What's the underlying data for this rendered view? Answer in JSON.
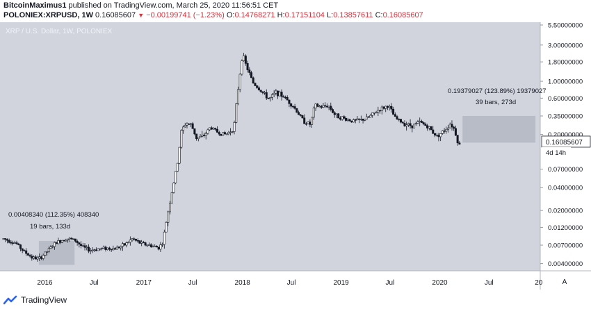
{
  "header": {
    "author": "BitcoinMaximus1",
    "published_text": "published on TradingView.com, March 25, 2020 11:56:51 CET",
    "symbol": "POLONIEX:XRPUSD, 1W",
    "last_price": "0.16085607",
    "change": "−0.00199741 (−1.23%)",
    "o_label": "O:",
    "o_value": "0.14768271",
    "h_label": "H:",
    "h_value": "0.17151104",
    "l_label": "L:",
    "l_value": "0.13857611",
    "c_label": "C:",
    "c_value": "0.16085607"
  },
  "footer": {
    "brand": "TradingView",
    "logo_icon": "tradingview-logo-icon"
  },
  "chart_data": {
    "type": "candlestick",
    "title": "XRP / U.S. Dollar, 1W, POLONIEX",
    "y_scale": "log",
    "ylim": [
      0.0035,
      5.5
    ],
    "y_ticks": [
      {
        "value": 5.5,
        "label": "5.50000000"
      },
      {
        "value": 3.0,
        "label": "3.00000000"
      },
      {
        "value": 1.8,
        "label": "1.80000000"
      },
      {
        "value": 1.0,
        "label": "1.00000000"
      },
      {
        "value": 0.6,
        "label": "0.60000000"
      },
      {
        "value": 0.35,
        "label": "0.35000000"
      },
      {
        "value": 0.2,
        "label": "0.20000000"
      },
      {
        "value": 0.07,
        "label": "0.07000000"
      },
      {
        "value": 0.04,
        "label": "0.04000000"
      },
      {
        "value": 0.02,
        "label": "0.02000000"
      },
      {
        "value": 0.012,
        "label": "0.01200000"
      },
      {
        "value": 0.007,
        "label": "0.00700000"
      },
      {
        "value": 0.004,
        "label": "0.00400000"
      }
    ],
    "x_ticks": [
      "2016",
      "Jul",
      "2017",
      "Jul",
      "2018",
      "Jul",
      "2019",
      "Jul",
      "2020",
      "Jul",
      "20"
    ],
    "last_price_label": "0.16085607",
    "countdown_label": "4d 14h",
    "axis_mode_button": "A",
    "background_color": "#d1d4dc",
    "grid": false,
    "price_path": [
      [
        "2015-08-01",
        0.0085
      ],
      [
        "2015-09-15",
        0.0075
      ],
      [
        "2015-10-15",
        0.0058
      ],
      [
        "2015-11-15",
        0.0048
      ],
      [
        "2015-12-10",
        0.0046
      ],
      [
        "2016-01-05",
        0.0056
      ],
      [
        "2016-02-10",
        0.0075
      ],
      [
        "2016-03-20",
        0.0086
      ],
      [
        "2016-04-20",
        0.0082
      ],
      [
        "2016-05-20",
        0.0066
      ],
      [
        "2016-06-15",
        0.006
      ],
      [
        "2016-07-10",
        0.0062
      ],
      [
        "2016-08-10",
        0.0064
      ],
      [
        "2016-09-15",
        0.0063
      ],
      [
        "2016-10-20",
        0.007
      ],
      [
        "2016-11-20",
        0.0085
      ],
      [
        "2016-12-20",
        0.0074
      ],
      [
        "2017-01-20",
        0.007
      ],
      [
        "2017-02-25",
        0.0065
      ],
      [
        "2017-03-12",
        0.0075
      ],
      [
        "2017-03-30",
        0.018
      ],
      [
        "2017-04-15",
        0.035
      ],
      [
        "2017-05-05",
        0.08
      ],
      [
        "2017-05-20",
        0.22
      ],
      [
        "2017-06-05",
        0.28
      ],
      [
        "2017-06-25",
        0.27
      ],
      [
        "2017-07-15",
        0.18
      ],
      [
        "2017-08-10",
        0.19
      ],
      [
        "2017-09-05",
        0.25
      ],
      [
        "2017-10-05",
        0.21
      ],
      [
        "2017-11-01",
        0.2
      ],
      [
        "2017-11-30",
        0.24
      ],
      [
        "2017-12-15",
        0.75
      ],
      [
        "2018-01-01",
        2.3
      ],
      [
        "2018-01-15",
        1.6
      ],
      [
        "2018-02-10",
        0.95
      ],
      [
        "2018-03-10",
        0.75
      ],
      [
        "2018-04-10",
        0.58
      ],
      [
        "2018-05-05",
        0.72
      ],
      [
        "2018-06-05",
        0.62
      ],
      [
        "2018-07-10",
        0.46
      ],
      [
        "2018-08-15",
        0.3
      ],
      [
        "2018-09-10",
        0.27
      ],
      [
        "2018-09-25",
        0.48
      ],
      [
        "2018-10-20",
        0.46
      ],
      [
        "2018-11-15",
        0.48
      ],
      [
        "2018-12-10",
        0.36
      ],
      [
        "2019-01-15",
        0.32
      ],
      [
        "2019-02-15",
        0.3
      ],
      [
        "2019-03-15",
        0.31
      ],
      [
        "2019-04-10",
        0.33
      ],
      [
        "2019-05-20",
        0.42
      ],
      [
        "2019-06-25",
        0.48
      ],
      [
        "2019-07-20",
        0.33
      ],
      [
        "2019-08-20",
        0.28
      ],
      [
        "2019-09-20",
        0.26
      ],
      [
        "2019-10-20",
        0.29
      ],
      [
        "2019-11-20",
        0.25
      ],
      [
        "2019-12-20",
        0.19
      ],
      [
        "2020-01-15",
        0.22
      ],
      [
        "2020-02-10",
        0.28
      ],
      [
        "2020-02-25",
        0.23
      ],
      [
        "2020-03-12",
        0.14
      ],
      [
        "2020-03-20",
        0.16
      ]
    ],
    "annotations": [
      {
        "label_top": "0.00408340 (112.35%) 408340",
        "label_bottom": "19 bars, 133d",
        "x_start": "2015-12-10",
        "x_end": "2016-04-20",
        "y_low": 0.00385,
        "y_high": 0.00795
      },
      {
        "label_top": "0.19379027 (123.89%) 19379027",
        "label_bottom": "39 bars, 273d",
        "x_start": "2020-03-25",
        "x_end": "2020-12-20",
        "y_low": 0.156,
        "y_high": 0.35
      }
    ]
  }
}
